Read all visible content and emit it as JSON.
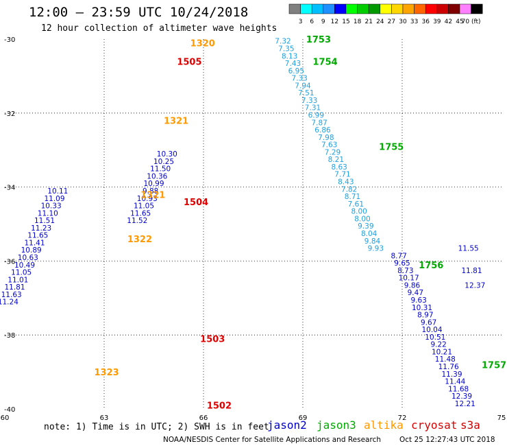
{
  "header": {
    "title": "12:00 – 23:59 UTC 10/24/2018",
    "subtitle": "12 hour collection of altimeter wave heights"
  },
  "colorbar": {
    "labels": [
      "3",
      "6",
      "9",
      "12",
      "15",
      "18",
      "21",
      "24",
      "27",
      "30",
      "33",
      "36",
      "39",
      "42",
      "45",
      "70 (ft)"
    ],
    "colors": [
      "#808080",
      "#00ffff",
      "#00bfff",
      "#1e90ff",
      "#0000ff",
      "#00ff00",
      "#00cc00",
      "#009900",
      "#ffff00",
      "#ffd700",
      "#ffa500",
      "#ff6600",
      "#ff0000",
      "#cc0000",
      "#800000",
      "#ff80ff",
      "#000000"
    ]
  },
  "satellite_colors": {
    "jason2": "#0000cc",
    "jason3": "#00aa00",
    "altika": "#ff9900",
    "cryosat": "#dd0000",
    "s3a": "#cc0000",
    "swh_blue": "#0000cc",
    "swh_lightblue": "#1fa0e0",
    "swh_green": "#66dd44"
  },
  "footer": {
    "note": "note: 1) Time is in UTC; 2) SWH is in feet",
    "legend": [
      {
        "key": "jason2",
        "label": "jason2"
      },
      {
        "key": "jason3",
        "label": "jason3"
      },
      {
        "key": "altika",
        "label": "altika"
      },
      {
        "key": "cryosat",
        "label": "cryosat"
      },
      {
        "key": "s3a",
        "label": "s3a"
      }
    ],
    "credit": "NOAA/NESDIS Center for Satellite Applications and Research",
    "timestamp": "Oct 25 12:27:43 UTC 2018"
  },
  "chart_data": {
    "type": "scatter",
    "xlim": [
      60,
      75
    ],
    "ylim": [
      -40,
      -30
    ],
    "xticks": [
      60,
      63,
      66,
      69,
      72,
      75
    ],
    "xtick_labels": [
      "60",
      "63",
      "66",
      "69",
      "72",
      "75"
    ],
    "yticks": [
      -30,
      -32,
      -34,
      -36,
      -38,
      -40
    ],
    "ytick_labels": [
      "-30",
      "-32",
      "-34",
      "-36",
      "-38",
      "-40"
    ],
    "grid": true,
    "time_labels": [
      {
        "text": "1320",
        "x": 65.6,
        "y": -30.1,
        "sat": "altika"
      },
      {
        "text": "1505",
        "x": 65.2,
        "y": -30.6,
        "sat": "cryosat"
      },
      {
        "text": "1321",
        "x": 64.8,
        "y": -32.2,
        "sat": "altika"
      },
      {
        "text": "1321",
        "x": 64.1,
        "y": -34.2,
        "sat": "altika"
      },
      {
        "text": "1504",
        "x": 65.4,
        "y": -34.4,
        "sat": "cryosat"
      },
      {
        "text": "1322",
        "x": 63.7,
        "y": -35.4,
        "sat": "altika"
      },
      {
        "text": "1503",
        "x": 65.9,
        "y": -38.1,
        "sat": "cryosat"
      },
      {
        "text": "1323",
        "x": 62.7,
        "y": -39.0,
        "sat": "altika"
      },
      {
        "text": "1502",
        "x": 66.1,
        "y": -39.9,
        "sat": "cryosat"
      },
      {
        "text": "1753",
        "x": 69.1,
        "y": -30.0,
        "sat": "jason3"
      },
      {
        "text": "1754",
        "x": 69.3,
        "y": -30.6,
        "sat": "jason3"
      },
      {
        "text": "1755",
        "x": 71.3,
        "y": -32.9,
        "sat": "jason3"
      },
      {
        "text": "1756",
        "x": 72.5,
        "y": -36.1,
        "sat": "jason3"
      },
      {
        "text": "1757",
        "x": 74.4,
        "y": -38.8,
        "sat": "jason3"
      }
    ],
    "series": [
      {
        "name": "jason3",
        "color": "lightblue",
        "x": [
          68.4,
          68.5,
          68.6,
          68.7,
          68.8,
          68.9,
          69.0,
          69.1,
          69.2,
          69.3,
          69.4,
          69.5,
          69.6,
          69.7,
          69.8,
          69.9,
          70.0,
          70.1,
          70.2,
          70.3,
          70.4,
          70.5,
          70.6,
          70.7,
          70.8,
          70.9,
          71.0,
          71.1,
          71.2
        ],
        "y": [
          -30.05,
          -30.25,
          -30.45,
          -30.65,
          -30.85,
          -31.05,
          -31.25,
          -31.45,
          -31.65,
          -31.85,
          -32.05,
          -32.25,
          -32.45,
          -32.65,
          -32.85,
          -33.05,
          -33.25,
          -33.45,
          -33.65,
          -33.85,
          -34.05,
          -34.25,
          -34.45,
          -34.65,
          -34.85,
          -35.05,
          -35.25,
          -35.45,
          -35.65
        ],
        "values": [
          7.32,
          7.35,
          8.13,
          7.43,
          6.95,
          7.33,
          7.94,
          7.51,
          7.33,
          7.31,
          6.99,
          7.87,
          6.86,
          7.98,
          7.63,
          7.29,
          8.21,
          8.63,
          7.71,
          8.43,
          7.82,
          8.71,
          7.61,
          8.0,
          8.0,
          9.39,
          8.04,
          9.84,
          9.93
        ]
      },
      {
        "name": "jason3_south",
        "color": "blue",
        "x": [
          71.9,
          72.0,
          72.1,
          72.2,
          72.3,
          72.4,
          72.5,
          72.6,
          72.7,
          72.8,
          72.9,
          73.0,
          73.1,
          73.2,
          73.3,
          73.4,
          73.5,
          73.6,
          73.7,
          73.8,
          73.9,
          74.0,
          74.1,
          74.2
        ],
        "y": [
          -35.85,
          -36.05,
          -36.25,
          -36.45,
          -36.65,
          -36.85,
          -37.05,
          -37.25,
          -37.45,
          -37.65,
          -37.85,
          -38.05,
          -38.25,
          -38.45,
          -38.65,
          -38.85,
          -39.05,
          -39.25,
          -39.45,
          -39.65,
          -39.85,
          -35.65,
          -36.25,
          -36.65
        ],
        "values": [
          8.77,
          9.65,
          8.73,
          10.17,
          9.86,
          9.47,
          9.63,
          10.31,
          8.97,
          9.67,
          10.04,
          10.51,
          9.22,
          10.21,
          11.48,
          11.76,
          11.39,
          11.44,
          11.68,
          12.39,
          12.21,
          11.55,
          11.81,
          12.37
        ]
      },
      {
        "name": "altika",
        "color": "blue",
        "x": [
          61.6,
          61.5,
          61.4,
          61.3,
          61.2,
          61.1,
          61.0,
          60.9,
          60.8,
          60.7,
          60.6,
          60.5,
          60.4,
          60.3,
          60.2,
          60.1
        ],
        "y": [
          -34.1,
          -34.3,
          -34.5,
          -34.7,
          -34.9,
          -35.1,
          -35.3,
          -35.5,
          -35.7,
          -35.9,
          -36.1,
          -36.3,
          -36.5,
          -36.7,
          -36.9,
          -37.1
        ],
        "values": [
          10.11,
          11.09,
          10.33,
          11.1,
          11.51,
          11.23,
          11.65,
          11.41,
          10.89,
          10.63,
          10.49,
          11.05,
          11.01,
          11.81,
          11.63,
          11.24
        ]
      },
      {
        "name": "cryosat",
        "color": "blue",
        "x": [
          64.9,
          64.8,
          64.7,
          64.6,
          64.5,
          64.4,
          64.3,
          64.2,
          64.1,
          64.0
        ],
        "y": [
          -33.1,
          -33.3,
          -33.5,
          -33.7,
          -33.9,
          -34.1,
          -34.3,
          -34.5,
          -34.7,
          -34.9
        ],
        "values": [
          10.3,
          10.25,
          11.5,
          10.36,
          10.99,
          9.88,
          10.93,
          11.05,
          11.65,
          11.52
        ]
      }
    ]
  }
}
